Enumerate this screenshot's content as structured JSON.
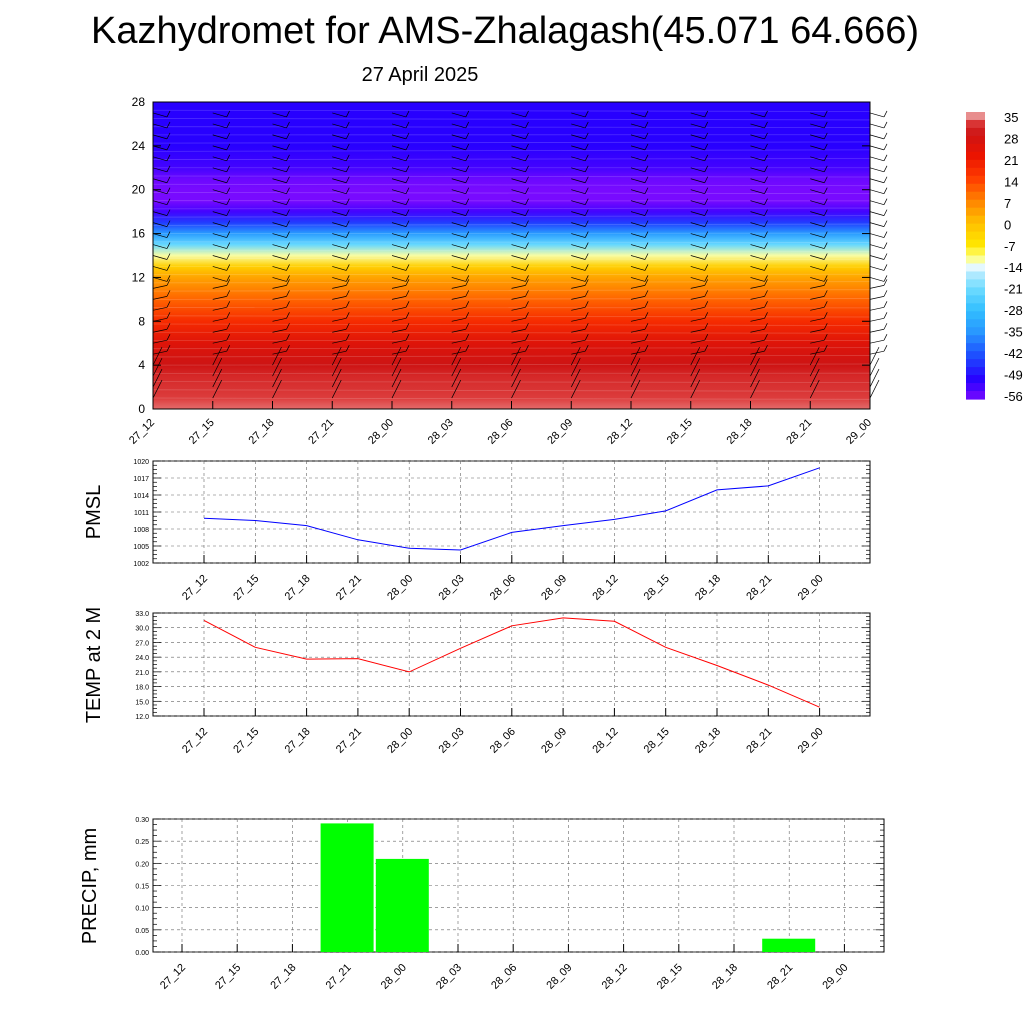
{
  "page": {
    "title": "Kazhydromet for AMS-Zhalagash(45.071 64.666)",
    "subtitle": "27 April 2025"
  },
  "chart_data": [
    {
      "type": "heatmap",
      "name": "cross-section",
      "title": "",
      "xlabel": "",
      "ylabel": "",
      "categories": [
        "27_12",
        "27_15",
        "27_18",
        "27_21",
        "28_00",
        "28_03",
        "28_06",
        "28_09",
        "28_12",
        "28_15",
        "28_18",
        "28_21",
        "29_00"
      ],
      "y_ticks": [
        "0",
        "4",
        "8",
        "12",
        "16",
        "20",
        "24",
        "28"
      ],
      "ylim": [
        0,
        28
      ],
      "colorbar_labels": [
        "35",
        "28",
        "21",
        "14",
        "7",
        "0",
        "-7",
        "-14",
        "-21",
        "-28",
        "-35",
        "-42",
        "-49",
        "-56"
      ],
      "colorbar_range": [
        -56,
        35
      ],
      "profile_levels": [
        0,
        1,
        2,
        3,
        4,
        6,
        8,
        10,
        12,
        13,
        14,
        15,
        16,
        17,
        18,
        19,
        20,
        21,
        22,
        24,
        26,
        28
      ],
      "profile_values": [
        33,
        32,
        31,
        30,
        28,
        24,
        17,
        10,
        3,
        -3,
        -12,
        -22,
        -34,
        -44,
        -52,
        -56,
        -57,
        -55,
        -52,
        -50,
        -50,
        -50
      ],
      "legend_position": "right",
      "grid": false
    },
    {
      "type": "line",
      "name": "pmsl",
      "title": "",
      "ylabel": "PMSL",
      "categories": [
        "27_12",
        "27_15",
        "27_18",
        "27_21",
        "28_00",
        "28_03",
        "28_06",
        "28_09",
        "28_12",
        "28_15",
        "28_18",
        "28_21",
        "29_00"
      ],
      "y_ticks": [
        "1002",
        "1005",
        "1008",
        "1011",
        "1014",
        "1017",
        "1020"
      ],
      "ylim": [
        1002,
        1020
      ],
      "series": [
        {
          "color": "#0000ff",
          "values": [
            1009.9,
            1009.5,
            1008.6,
            1006.1,
            1004.6,
            1004.3,
            1007.4,
            1008.6,
            1009.7,
            1011.2,
            1014.9,
            1015.6,
            1018.8
          ]
        }
      ],
      "grid": true
    },
    {
      "type": "line",
      "name": "temp",
      "title": "",
      "ylabel": "TEMP at 2 M",
      "categories": [
        "27_12",
        "27_15",
        "27_18",
        "27_21",
        "28_00",
        "28_03",
        "28_06",
        "28_09",
        "28_12",
        "28_15",
        "28_18",
        "28_21",
        "29_00"
      ],
      "y_ticks": [
        "12.0",
        "15.0",
        "18.0",
        "21.0",
        "24.0",
        "27.0",
        "30.0",
        "33.0"
      ],
      "ylim": [
        12,
        33
      ],
      "series": [
        {
          "color": "#ff0000",
          "values": [
            31.5,
            26.0,
            23.6,
            23.7,
            21.0,
            25.8,
            30.4,
            32.0,
            31.3,
            26.0,
            22.3,
            18.3,
            13.8
          ]
        }
      ],
      "grid": true
    },
    {
      "type": "bar",
      "name": "precip",
      "title": "",
      "ylabel": "PRECIP, mm",
      "categories": [
        "27_12",
        "27_15",
        "27_18",
        "27_21",
        "28_00",
        "28_03",
        "28_06",
        "28_09",
        "28_12",
        "28_15",
        "28_18",
        "28_21",
        "29_00"
      ],
      "y_ticks": [
        "0.00",
        "0.05",
        "0.10",
        "0.15",
        "0.20",
        "0.25",
        "0.30"
      ],
      "ylim": [
        0,
        0.3
      ],
      "series": [
        {
          "color": "#00ff00",
          "values": [
            0,
            0,
            0,
            0.29,
            0.21,
            0,
            0,
            0,
            0,
            0,
            0,
            0.03,
            0
          ]
        }
      ],
      "grid": true
    }
  ]
}
